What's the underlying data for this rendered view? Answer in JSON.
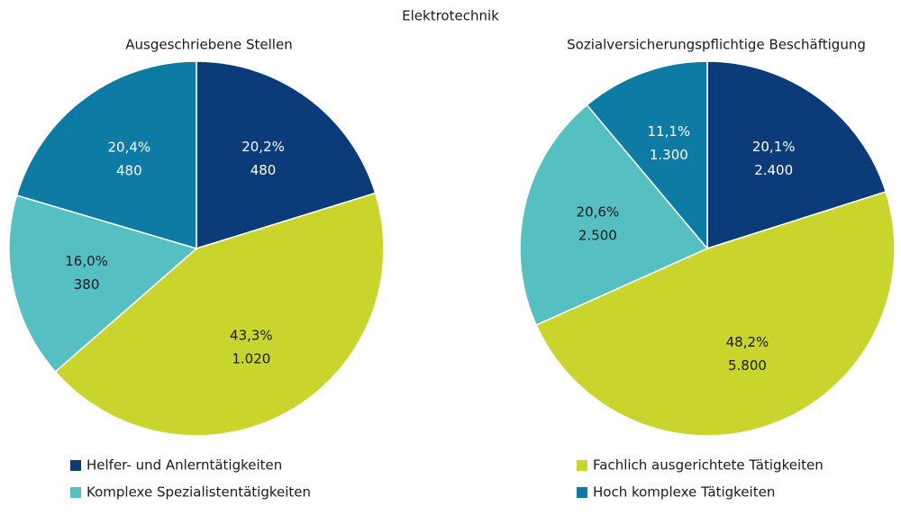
{
  "title": "Elektrotechnik",
  "chart_data": [
    {
      "type": "pie",
      "title": "Ausgeschriebene Stellen",
      "categories": [
        "Helfer- und Anlerntätigkeiten",
        "Fachlich ausgerichtete Tätigkeiten",
        "Komplexe Spezialistentätigkeiten",
        "Hoch komplexe Tätigkeiten"
      ],
      "colors": [
        "#0b3b78",
        "#c9d52c",
        "#56bfc1",
        "#0e7ba4"
      ],
      "values": [
        20.2,
        43.3,
        16.0,
        20.4
      ],
      "value_labels": [
        "20,2%",
        "43,3%",
        "16,0%",
        "20,4%"
      ],
      "counts": [
        480,
        1020,
        380,
        480
      ],
      "count_labels": [
        "480",
        "1.020",
        "380",
        "480"
      ]
    },
    {
      "type": "pie",
      "title": "Sozialversicherungspflichtige Beschäftigung",
      "categories": [
        "Helfer- und Anlerntätigkeiten",
        "Fachlich ausgerichtete Tätigkeiten",
        "Komplexe Spezialistentätigkeiten",
        "Hoch komplexe Tätigkeiten"
      ],
      "colors": [
        "#0b3b78",
        "#c9d52c",
        "#56bfc1",
        "#0e7ba4"
      ],
      "values": [
        20.1,
        48.2,
        20.6,
        11.1
      ],
      "value_labels": [
        "20,1%",
        "48,2%",
        "20,6%",
        "11,1%"
      ],
      "counts": [
        2400,
        5800,
        2500,
        1300
      ],
      "count_labels": [
        "2.400",
        "5.800",
        "2.500",
        "1.300"
      ]
    }
  ]
}
